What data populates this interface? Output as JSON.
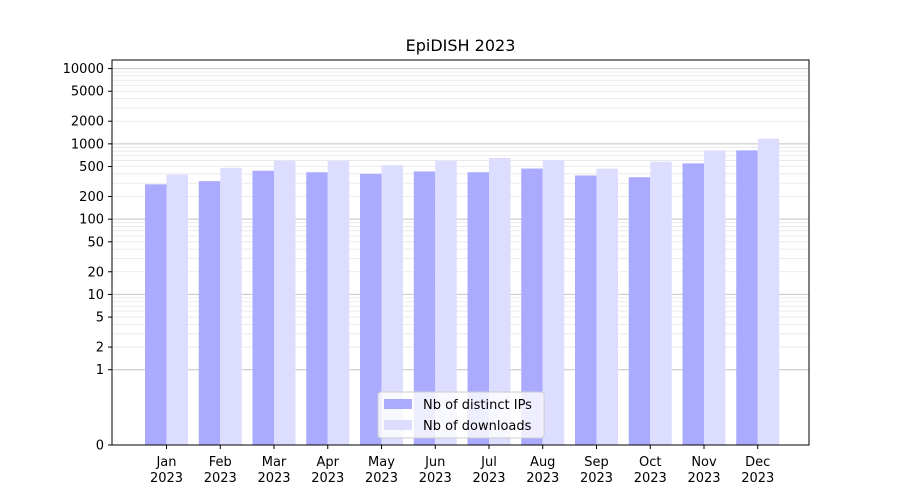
{
  "chart_data": {
    "type": "bar",
    "title": "EpiDISH 2023",
    "categories": [
      [
        "Jan",
        "2023"
      ],
      [
        "Feb",
        "2023"
      ],
      [
        "Mar",
        "2023"
      ],
      [
        "Apr",
        "2023"
      ],
      [
        "May",
        "2023"
      ],
      [
        "Jun",
        "2023"
      ],
      [
        "Jul",
        "2023"
      ],
      [
        "Aug",
        "2023"
      ],
      [
        "Sep",
        "2023"
      ],
      [
        "Oct",
        "2023"
      ],
      [
        "Nov",
        "2023"
      ],
      [
        "Dec",
        "2023"
      ]
    ],
    "series": [
      {
        "name": "Nb of distinct IPs",
        "color": "#aaaaff",
        "values": [
          290,
          320,
          440,
          420,
          400,
          430,
          420,
          470,
          380,
          360,
          550,
          820
        ]
      },
      {
        "name": "Nb of downloads",
        "color": "#ddddff",
        "values": [
          390,
          480,
          600,
          600,
          520,
          600,
          650,
          610,
          470,
          580,
          820,
          1170
        ]
      }
    ],
    "y_scale": "symlog",
    "ylim": [
      0,
      13000
    ],
    "y_ticks": [
      0,
      1,
      2,
      5,
      10,
      20,
      50,
      100,
      200,
      500,
      1000,
      2000,
      5000,
      10000
    ],
    "grid": "horizontal",
    "legend_position": "bottom-center",
    "xlabel": "",
    "ylabel": ""
  }
}
